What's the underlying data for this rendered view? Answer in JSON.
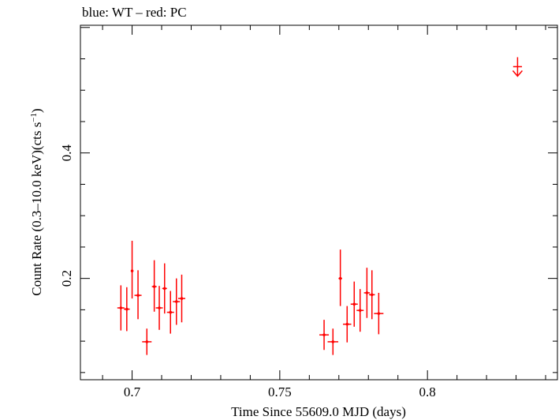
{
  "chart_data": {
    "type": "scatter",
    "title": "blue: WT – red: PC",
    "xlabel": "Time Since 55609.0 MJD (days)",
    "ylabel": "Count Rate (0.3–10.0 keV)(cts s",
    "ylabel_sup": "−1",
    "ylabel_tail": ")",
    "xlim": [
      0.6825,
      0.844
    ],
    "ylim": [
      0.0385,
      0.6035
    ],
    "x_ticks": [
      0.7,
      0.75,
      0.8
    ],
    "x_tick_labels": [
      "0.7",
      "0.75",
      "0.8"
    ],
    "y_ticks": [
      0.2,
      0.4
    ],
    "y_tick_labels": [
      "0.2",
      "0.4"
    ],
    "grid": false,
    "series": [
      {
        "color": "#ff0000",
        "points": [
          {
            "x": 0.6962,
            "y": 0.153,
            "xerr": 0.0012,
            "yerr_lo": 0.036,
            "yerr_hi": 0.036
          },
          {
            "x": 0.6982,
            "y": 0.151,
            "xerr": 0.001,
            "yerr_lo": 0.035,
            "yerr_hi": 0.035
          },
          {
            "x": 0.7,
            "y": 0.212,
            "xerr": 0.0004,
            "yerr_lo": 0.044,
            "yerr_hi": 0.048
          },
          {
            "x": 0.702,
            "y": 0.173,
            "xerr": 0.0012,
            "yerr_lo": 0.038,
            "yerr_hi": 0.04
          },
          {
            "x": 0.705,
            "y": 0.099,
            "xerr": 0.0016,
            "yerr_lo": 0.021,
            "yerr_hi": 0.021
          },
          {
            "x": 0.7075,
            "y": 0.187,
            "xerr": 0.0008,
            "yerr_lo": 0.04,
            "yerr_hi": 0.042
          },
          {
            "x": 0.7092,
            "y": 0.153,
            "xerr": 0.0012,
            "yerr_lo": 0.035,
            "yerr_hi": 0.035
          },
          {
            "x": 0.711,
            "y": 0.184,
            "xerr": 0.0008,
            "yerr_lo": 0.04,
            "yerr_hi": 0.04
          },
          {
            "x": 0.713,
            "y": 0.146,
            "xerr": 0.0012,
            "yerr_lo": 0.034,
            "yerr_hi": 0.034
          },
          {
            "x": 0.715,
            "y": 0.163,
            "xerr": 0.0012,
            "yerr_lo": 0.037,
            "yerr_hi": 0.037
          },
          {
            "x": 0.7168,
            "y": 0.168,
            "xerr": 0.0012,
            "yerr_lo": 0.038,
            "yerr_hi": 0.038
          },
          {
            "x": 0.765,
            "y": 0.11,
            "xerr": 0.0016,
            "yerr_lo": 0.024,
            "yerr_hi": 0.024
          },
          {
            "x": 0.768,
            "y": 0.099,
            "xerr": 0.0018,
            "yerr_lo": 0.021,
            "yerr_hi": 0.021
          },
          {
            "x": 0.7705,
            "y": 0.2,
            "xerr": 0.0006,
            "yerr_lo": 0.044,
            "yerr_hi": 0.046
          },
          {
            "x": 0.7728,
            "y": 0.127,
            "xerr": 0.0014,
            "yerr_lo": 0.029,
            "yerr_hi": 0.029
          },
          {
            "x": 0.7752,
            "y": 0.159,
            "xerr": 0.0012,
            "yerr_lo": 0.036,
            "yerr_hi": 0.036
          },
          {
            "x": 0.7772,
            "y": 0.149,
            "xerr": 0.0012,
            "yerr_lo": 0.034,
            "yerr_hi": 0.034
          },
          {
            "x": 0.7795,
            "y": 0.177,
            "xerr": 0.001,
            "yerr_lo": 0.04,
            "yerr_hi": 0.04
          },
          {
            "x": 0.7812,
            "y": 0.174,
            "xerr": 0.001,
            "yerr_lo": 0.039,
            "yerr_hi": 0.039
          },
          {
            "x": 0.7835,
            "y": 0.144,
            "xerr": 0.0016,
            "yerr_lo": 0.033,
            "yerr_hi": 0.033
          }
        ],
        "upper_limits": [
          {
            "x": 0.8305,
            "y": 0.5375,
            "xerr": 0.0015
          }
        ]
      }
    ]
  }
}
